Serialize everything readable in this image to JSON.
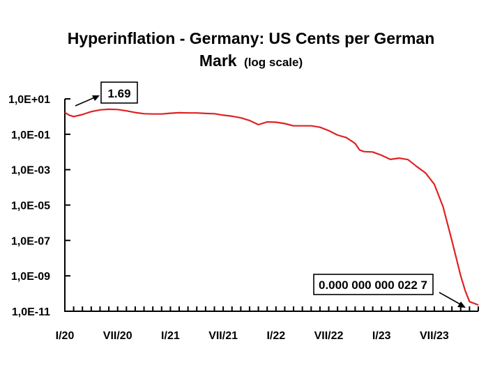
{
  "chart_data": {
    "type": "line",
    "title_line1": "Hyperinflation - Germany: US Cents per German",
    "title_line2_main": "Mark",
    "title_line2_suffix": "(log scale)",
    "y_scale": "log",
    "ylim": [
      1e-11,
      10
    ],
    "y_ticks": [
      {
        "value": 10,
        "label": "1,0E+01"
      },
      {
        "value": 0.1,
        "label": "1,0E-01"
      },
      {
        "value": 0.001,
        "label": "1,0E-03"
      },
      {
        "value": 1e-05,
        "label": "1,0E-05"
      },
      {
        "value": 1e-07,
        "label": "1,0E-07"
      },
      {
        "value": 1e-09,
        "label": "1,0E-09"
      },
      {
        "value": 1e-11,
        "label": "1,0E-11"
      }
    ],
    "x_range_months": [
      0,
      47
    ],
    "x_ticks": [
      {
        "month": 0,
        "label": "I/20"
      },
      {
        "month": 6,
        "label": "VII/20"
      },
      {
        "month": 12,
        "label": "I/21"
      },
      {
        "month": 18,
        "label": "VII/21"
      },
      {
        "month": 24,
        "label": "I/22"
      },
      {
        "month": 30,
        "label": "VII/22"
      },
      {
        "month": 36,
        "label": "I/23"
      },
      {
        "month": 42,
        "label": "VII/23"
      }
    ],
    "series": [
      {
        "name": "US Cents per German Mark",
        "color": "#dd2222",
        "points": [
          [
            0,
            1.69
          ],
          [
            0.5,
            1.2
          ],
          [
            1,
            1.0
          ],
          [
            2,
            1.3
          ],
          [
            3,
            1.9
          ],
          [
            4,
            2.4
          ],
          [
            5,
            2.6
          ],
          [
            6,
            2.5
          ],
          [
            7,
            2.1
          ],
          [
            8,
            1.7
          ],
          [
            9,
            1.45
          ],
          [
            10,
            1.4
          ],
          [
            11,
            1.4
          ],
          [
            12,
            1.55
          ],
          [
            13,
            1.65
          ],
          [
            14,
            1.6
          ],
          [
            15,
            1.6
          ],
          [
            16,
            1.5
          ],
          [
            17,
            1.45
          ],
          [
            18,
            1.2
          ],
          [
            19,
            1.05
          ],
          [
            20,
            0.85
          ],
          [
            21,
            0.6
          ],
          [
            22,
            0.35
          ],
          [
            23,
            0.5
          ],
          [
            24,
            0.48
          ],
          [
            25,
            0.4
          ],
          [
            26,
            0.3
          ],
          [
            27,
            0.3
          ],
          [
            28,
            0.3
          ],
          [
            29,
            0.25
          ],
          [
            30,
            0.16
          ],
          [
            31,
            0.09
          ],
          [
            32,
            0.065
          ],
          [
            33,
            0.03
          ],
          [
            33.5,
            0.013
          ],
          [
            34,
            0.0105
          ],
          [
            35,
            0.01
          ],
          [
            36,
            0.0065
          ],
          [
            37,
            0.0038
          ],
          [
            38,
            0.0045
          ],
          [
            39,
            0.0037
          ],
          [
            40,
            0.0015
          ],
          [
            41,
            0.00065
          ],
          [
            42,
            0.00015
          ],
          [
            43,
            8e-06
          ],
          [
            44,
            1e-07
          ],
          [
            45,
            1e-09
          ],
          [
            45.5,
            1.5e-10
          ],
          [
            46,
            3.5e-11
          ],
          [
            47,
            2.27e-11
          ]
        ]
      }
    ],
    "annotations": [
      {
        "text": "1.69",
        "points_to_month": 0,
        "value": 1.69
      },
      {
        "text": "0.000 000 000 022 7",
        "points_to_month": 46.5,
        "value": 2.27e-11
      }
    ]
  }
}
